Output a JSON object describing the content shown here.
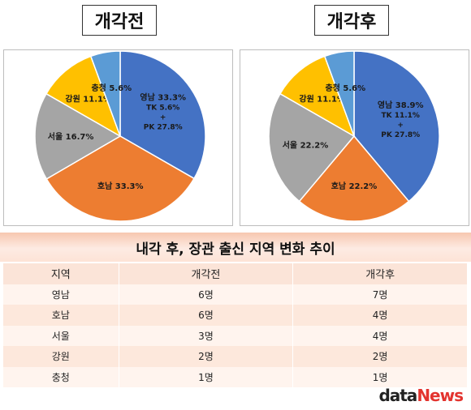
{
  "chart_data": [
    {
      "type": "pie",
      "title": "개각전",
      "slices": [
        {
          "region": "영남",
          "label": "영남 33.3%",
          "value": 33.3,
          "sub": [
            "TK 5.6%",
            "+",
            "PK 27.8%"
          ],
          "color": "#4472c4"
        },
        {
          "region": "호남",
          "label": "호남 33.3%",
          "value": 33.3,
          "color": "#ed7d31"
        },
        {
          "region": "서울",
          "label": "서울 16.7%",
          "value": 16.7,
          "color": "#a5a5a5"
        },
        {
          "region": "강원",
          "label": "강원 11.1%",
          "value": 11.1,
          "color": "#ffc000"
        },
        {
          "region": "충청",
          "label": "충청 5.6%",
          "value": 5.6,
          "color": "#5b9bd5"
        }
      ]
    },
    {
      "type": "pie",
      "title": "개각후",
      "slices": [
        {
          "region": "영남",
          "label": "영남 38.9%",
          "value": 38.9,
          "sub": [
            "TK 11.1%",
            "+",
            "PK 27.8%"
          ],
          "color": "#4472c4"
        },
        {
          "region": "호남",
          "label": "호남 22.2%",
          "value": 22.2,
          "color": "#ed7d31"
        },
        {
          "region": "서울",
          "label": "서울 22.2%",
          "value": 22.2,
          "color": "#a5a5a5"
        },
        {
          "region": "강원",
          "label": "강원 11.1%",
          "value": 11.1,
          "color": "#ffc000"
        },
        {
          "region": "충청",
          "label": "충청 5.6%",
          "value": 5.6,
          "color": "#5b9bd5"
        }
      ]
    },
    {
      "type": "table",
      "title": "내각 후, 장관 출신 지역 변화 추이",
      "columns": [
        "지역",
        "개각전",
        "개각후"
      ],
      "rows": [
        [
          "영남",
          "6명",
          "7명"
        ],
        [
          "호남",
          "6명",
          "4명"
        ],
        [
          "서울",
          "3명",
          "4명"
        ],
        [
          "강원",
          "2명",
          "2명"
        ],
        [
          "충청",
          "1명",
          "1명"
        ]
      ]
    }
  ],
  "logo": {
    "part1": "data",
    "part2": "News"
  }
}
